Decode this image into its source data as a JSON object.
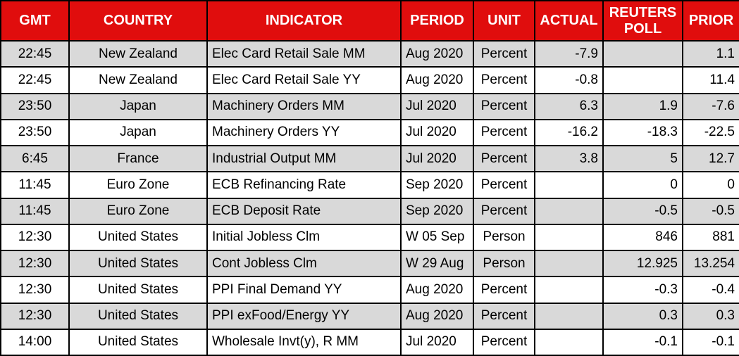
{
  "chart_data": {
    "type": "table",
    "title": "Economic calendar table",
    "columns": [
      {
        "key": "gmt",
        "label": "GMT",
        "align": "center"
      },
      {
        "key": "country",
        "label": "COUNTRY",
        "align": "center"
      },
      {
        "key": "indicator",
        "label": "INDICATOR",
        "align": "left"
      },
      {
        "key": "period",
        "label": "PERIOD",
        "align": "left"
      },
      {
        "key": "unit",
        "label": "UNIT",
        "align": "center"
      },
      {
        "key": "actual",
        "label": "ACTUAL",
        "align": "right"
      },
      {
        "key": "reuters_poll",
        "label": "REUTERS POLL",
        "align": "right"
      },
      {
        "key": "prior",
        "label": "PRIOR",
        "align": "right"
      }
    ],
    "rows": [
      [
        "22:45",
        "New Zealand",
        "Elec Card Retail Sale MM",
        "Aug 2020",
        "Percent",
        "-7.9",
        "",
        "1.1"
      ],
      [
        "22:45",
        "New Zealand",
        "Elec Card Retail Sale YY",
        "Aug 2020",
        "Percent",
        "-0.8",
        "",
        "11.4"
      ],
      [
        "23:50",
        "Japan",
        "Machinery Orders MM",
        "Jul 2020",
        "Percent",
        "6.3",
        "1.9",
        "-7.6"
      ],
      [
        "23:50",
        "Japan",
        "Machinery Orders YY",
        "Jul 2020",
        "Percent",
        "-16.2",
        "-18.3",
        "-22.5"
      ],
      [
        "6:45",
        "France",
        "Industrial Output MM",
        "Jul 2020",
        "Percent",
        "3.8",
        "5",
        "12.7"
      ],
      [
        "11:45",
        "Euro Zone",
        "ECB Refinancing Rate",
        "Sep 2020",
        "Percent",
        "",
        "0",
        "0"
      ],
      [
        "11:45",
        "Euro Zone",
        "ECB Deposit Rate",
        "Sep 2020",
        "Percent",
        "",
        "-0.5",
        "-0.5"
      ],
      [
        "12:30",
        "United States",
        "Initial Jobless Clm",
        "W 05 Sep",
        "Person",
        "",
        "846",
        "881"
      ],
      [
        "12:30",
        "United States",
        "Cont Jobless Clm",
        "W 29 Aug",
        "Person",
        "",
        "12.925",
        "13.254"
      ],
      [
        "12:30",
        "United States",
        "PPI Final Demand YY",
        "Aug 2020",
        "Percent",
        "",
        "-0.3",
        "-0.4"
      ],
      [
        "12:30",
        "United States",
        "PPI exFood/Energy YY",
        "Aug 2020",
        "Percent",
        "",
        "0.3",
        "0.3"
      ],
      [
        "14:00",
        "United States",
        "Wholesale Invt(y), R MM",
        "Jul 2020",
        "Percent",
        "",
        "-0.1",
        "-0.1"
      ]
    ],
    "striping": "odd rows gray starting with first data row"
  },
  "colors": {
    "header_bg": "#E00D0D",
    "header_text": "#FFFFFF",
    "row_bg": "#FFFFFF",
    "row_alt_bg": "#D9D9D9",
    "border": "#000000",
    "body_text": "#000000"
  }
}
